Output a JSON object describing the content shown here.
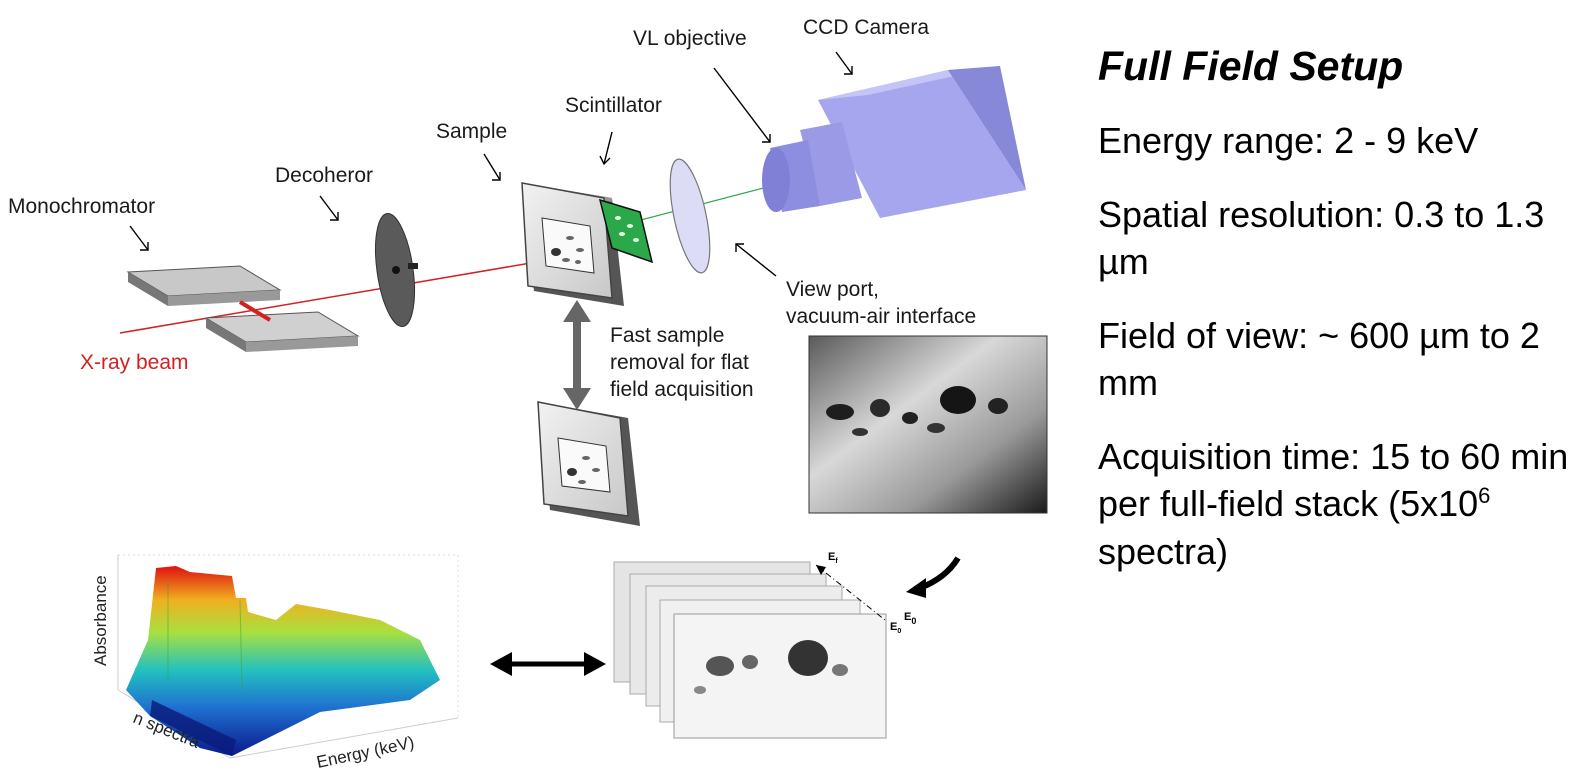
{
  "labels": {
    "vl_objective": "VL objective",
    "ccd_camera": "CCD Camera",
    "scintillator": "Scintillator",
    "sample": "Sample",
    "decoheror": "Decoheror",
    "monochromator": "Monochromator",
    "xray_beam": "X-ray beam",
    "view_port_1": "View port,",
    "view_port_2": "vacuum-air interface",
    "fast_removal_1": "Fast sample",
    "fast_removal_2": "removal  for flat",
    "fast_removal_3": "field acquisition",
    "absorbance": "Absorbance",
    "n_spectra": "n spectra",
    "energy_kev": "Energy (keV)",
    "e_f": "E",
    "e_f_sub": "f",
    "e_0": "E",
    "e_0_sub": "0",
    "e_0_big": "E",
    "e_0_big_sub": "0"
  },
  "panel": {
    "title": "Full Field Setup",
    "energy_range": "Energy range: 2 - 9 keV",
    "spatial_resolution": "Spatial resolution: 0.3 to 1.3 µm",
    "field_of_view": "Field of view: ~ 600 µm to 2 mm",
    "acquisition_time_main": "Acquisition time: 15 to 60 min per full-field stack (5x10",
    "acquisition_time_exp": "6",
    "acquisition_time_end": " spectra)"
  },
  "colors": {
    "beam": "#d42020",
    "camera": "#a6a6ee",
    "scintillator": "#2aa84a",
    "lens": "#d8d8f4"
  }
}
